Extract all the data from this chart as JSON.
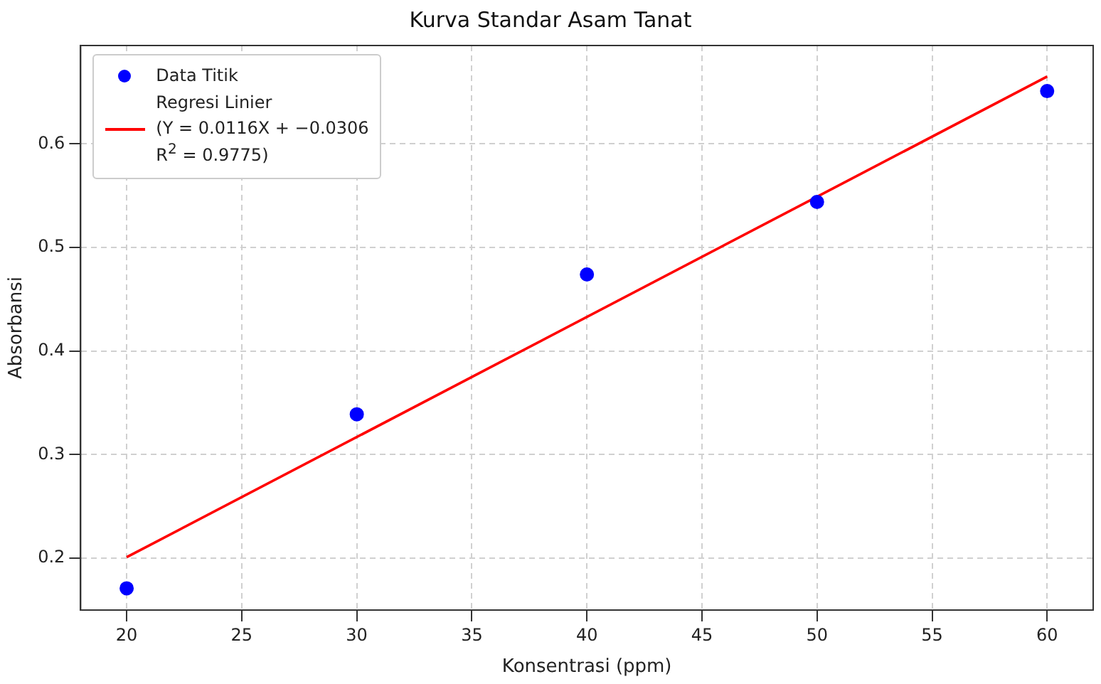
{
  "chart_data": {
    "type": "scatter",
    "title": "Kurva Standar Asam Tanat",
    "xlabel": "Konsentrasi (ppm)",
    "ylabel": "Absorbansi",
    "xlim": [
      18,
      62
    ],
    "xticks": [
      20,
      25,
      30,
      35,
      40,
      45,
      50,
      55,
      60
    ],
    "ylim": [
      0.15,
      0.695
    ],
    "yticks": [
      0.2,
      0.3,
      0.4,
      0.5,
      0.6
    ],
    "grid": true,
    "legend": "top left",
    "series": [
      {
        "name": "Data Titik",
        "marker": "circle",
        "color": "#0000ff",
        "x": [
          20,
          30,
          40,
          50,
          60
        ],
        "values": [
          0.171,
          0.339,
          0.474,
          0.544,
          0.651
        ]
      },
      {
        "name": "Regresi Linier\n(Y = 0.0116X + −0.0306\nR$^{2}$ = 0.9775)",
        "type": "line",
        "marker": "none",
        "line_style": "solid",
        "color": "#ff0000",
        "x": [
          20,
          60
        ],
        "values": [
          0.201,
          0.665
        ]
      }
    ]
  }
}
